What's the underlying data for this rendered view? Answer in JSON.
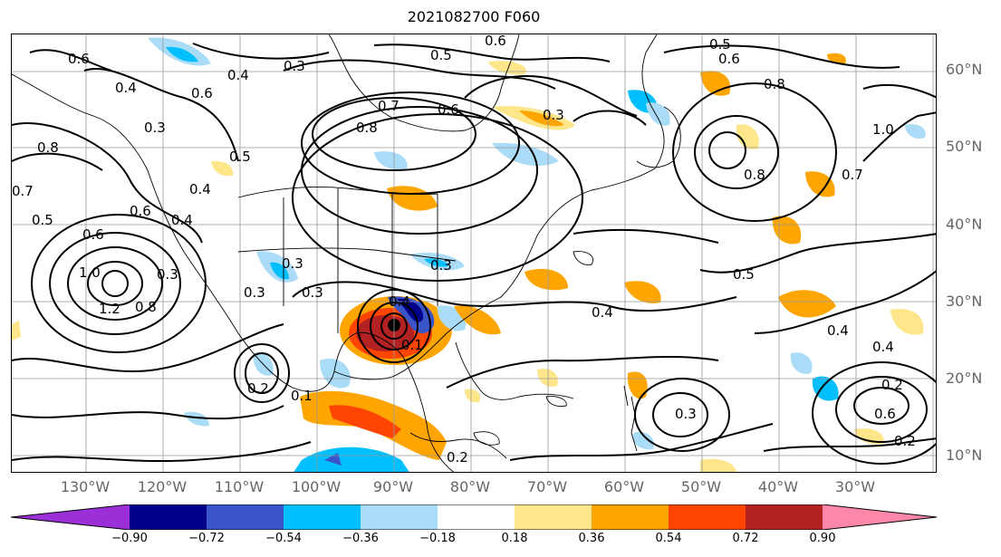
{
  "title": "2021082700 F060",
  "lat_labels": [
    "60°N",
    "50°N",
    "40°N",
    "30°N",
    "20°N",
    "10°N"
  ],
  "lon_labels": [
    "130°W",
    "120°W",
    "110°W",
    "100°W",
    "90°W",
    "80°W",
    "70°W",
    "60°W",
    "50°W",
    "40°W",
    "30°W"
  ],
  "colorbar": {
    "ticks": [
      "−0.90",
      "−0.72",
      "−0.54",
      "−0.36",
      "−0.18",
      "0.18",
      "0.36",
      "0.54",
      "0.72",
      "0.90"
    ],
    "colors": {
      "lt_m090": "#9b30d9",
      "m090_m072": "#00008b",
      "m072_m054": "#3a55c8",
      "m054_m036": "#00bfff",
      "m036_m018": "#aadcf8",
      "m018_p018": "#ffffff",
      "p018_p036": "#ffe68a",
      "p036_p054": "#ffa500",
      "p054_p072": "#ff4500",
      "p072_p090": "#b22222",
      "gt_p090": "#ff88aa"
    }
  },
  "contour_labels": [
    "0.6",
    "0.4",
    "0.3",
    "0.6",
    "0.4",
    "0.5",
    "0.3",
    "0.8",
    "0.6",
    "0.8",
    "0.5",
    "0.7",
    "0.6",
    "0.3",
    "0.5",
    "0.6",
    "0.8",
    "0.8",
    "0.7",
    "1.0",
    "0.7",
    "0.5",
    "0.4",
    "0.6",
    "0.4",
    "0.6",
    "1.0",
    "1.2",
    "0.8",
    "0.3",
    "0.3",
    "0.3",
    "0.4",
    "0.2",
    "0.1",
    "0.5",
    "0.3",
    "0.4",
    "0.3",
    "0.4",
    "0.4",
    "0.6",
    "0.2",
    "0.2",
    "0.3",
    "0.1",
    "0.2"
  ]
}
